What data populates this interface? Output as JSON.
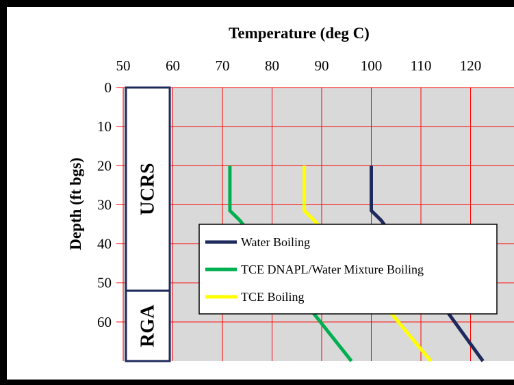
{
  "chart_data": {
    "type": "line",
    "title": "",
    "xlabel": "Temperature (deg C)",
    "ylabel": "Depth (ft bgs)",
    "x_axis_position": "top",
    "y_axis_inverted": true,
    "xlim": [
      50,
      130
    ],
    "ylim": [
      0,
      70
    ],
    "x_ticks": [
      50,
      60,
      70,
      80,
      90,
      100,
      110,
      120
    ],
    "y_ticks": [
      0,
      10,
      20,
      30,
      40,
      50,
      60
    ],
    "grid": true,
    "plot_background": "#d9d9d9",
    "grid_color": "#ff0000",
    "legend_position": "center-right",
    "series": [
      {
        "name": "Water Boiling",
        "color": "#1f2a5c",
        "points": [
          [
            100,
            20
          ],
          [
            100,
            31.5
          ],
          [
            102,
            34
          ],
          [
            122.5,
            70
          ]
        ]
      },
      {
        "name": "TCE DNAPL/Water Mixture Boiling",
        "color": "#00b050",
        "points": [
          [
            71.5,
            20
          ],
          [
            71.5,
            31.5
          ],
          [
            73.5,
            34
          ],
          [
            96,
            70
          ]
        ]
      },
      {
        "name": "TCE Boiling",
        "color": "#ffff00",
        "points": [
          [
            86.5,
            20
          ],
          [
            86.5,
            31.5
          ],
          [
            88.5,
            34
          ],
          [
            112,
            70
          ]
        ]
      }
    ],
    "strata": [
      {
        "label": "UCRS",
        "from": 0,
        "to": 52
      },
      {
        "label": "RGA",
        "from": 52,
        "to": 70
      }
    ]
  }
}
